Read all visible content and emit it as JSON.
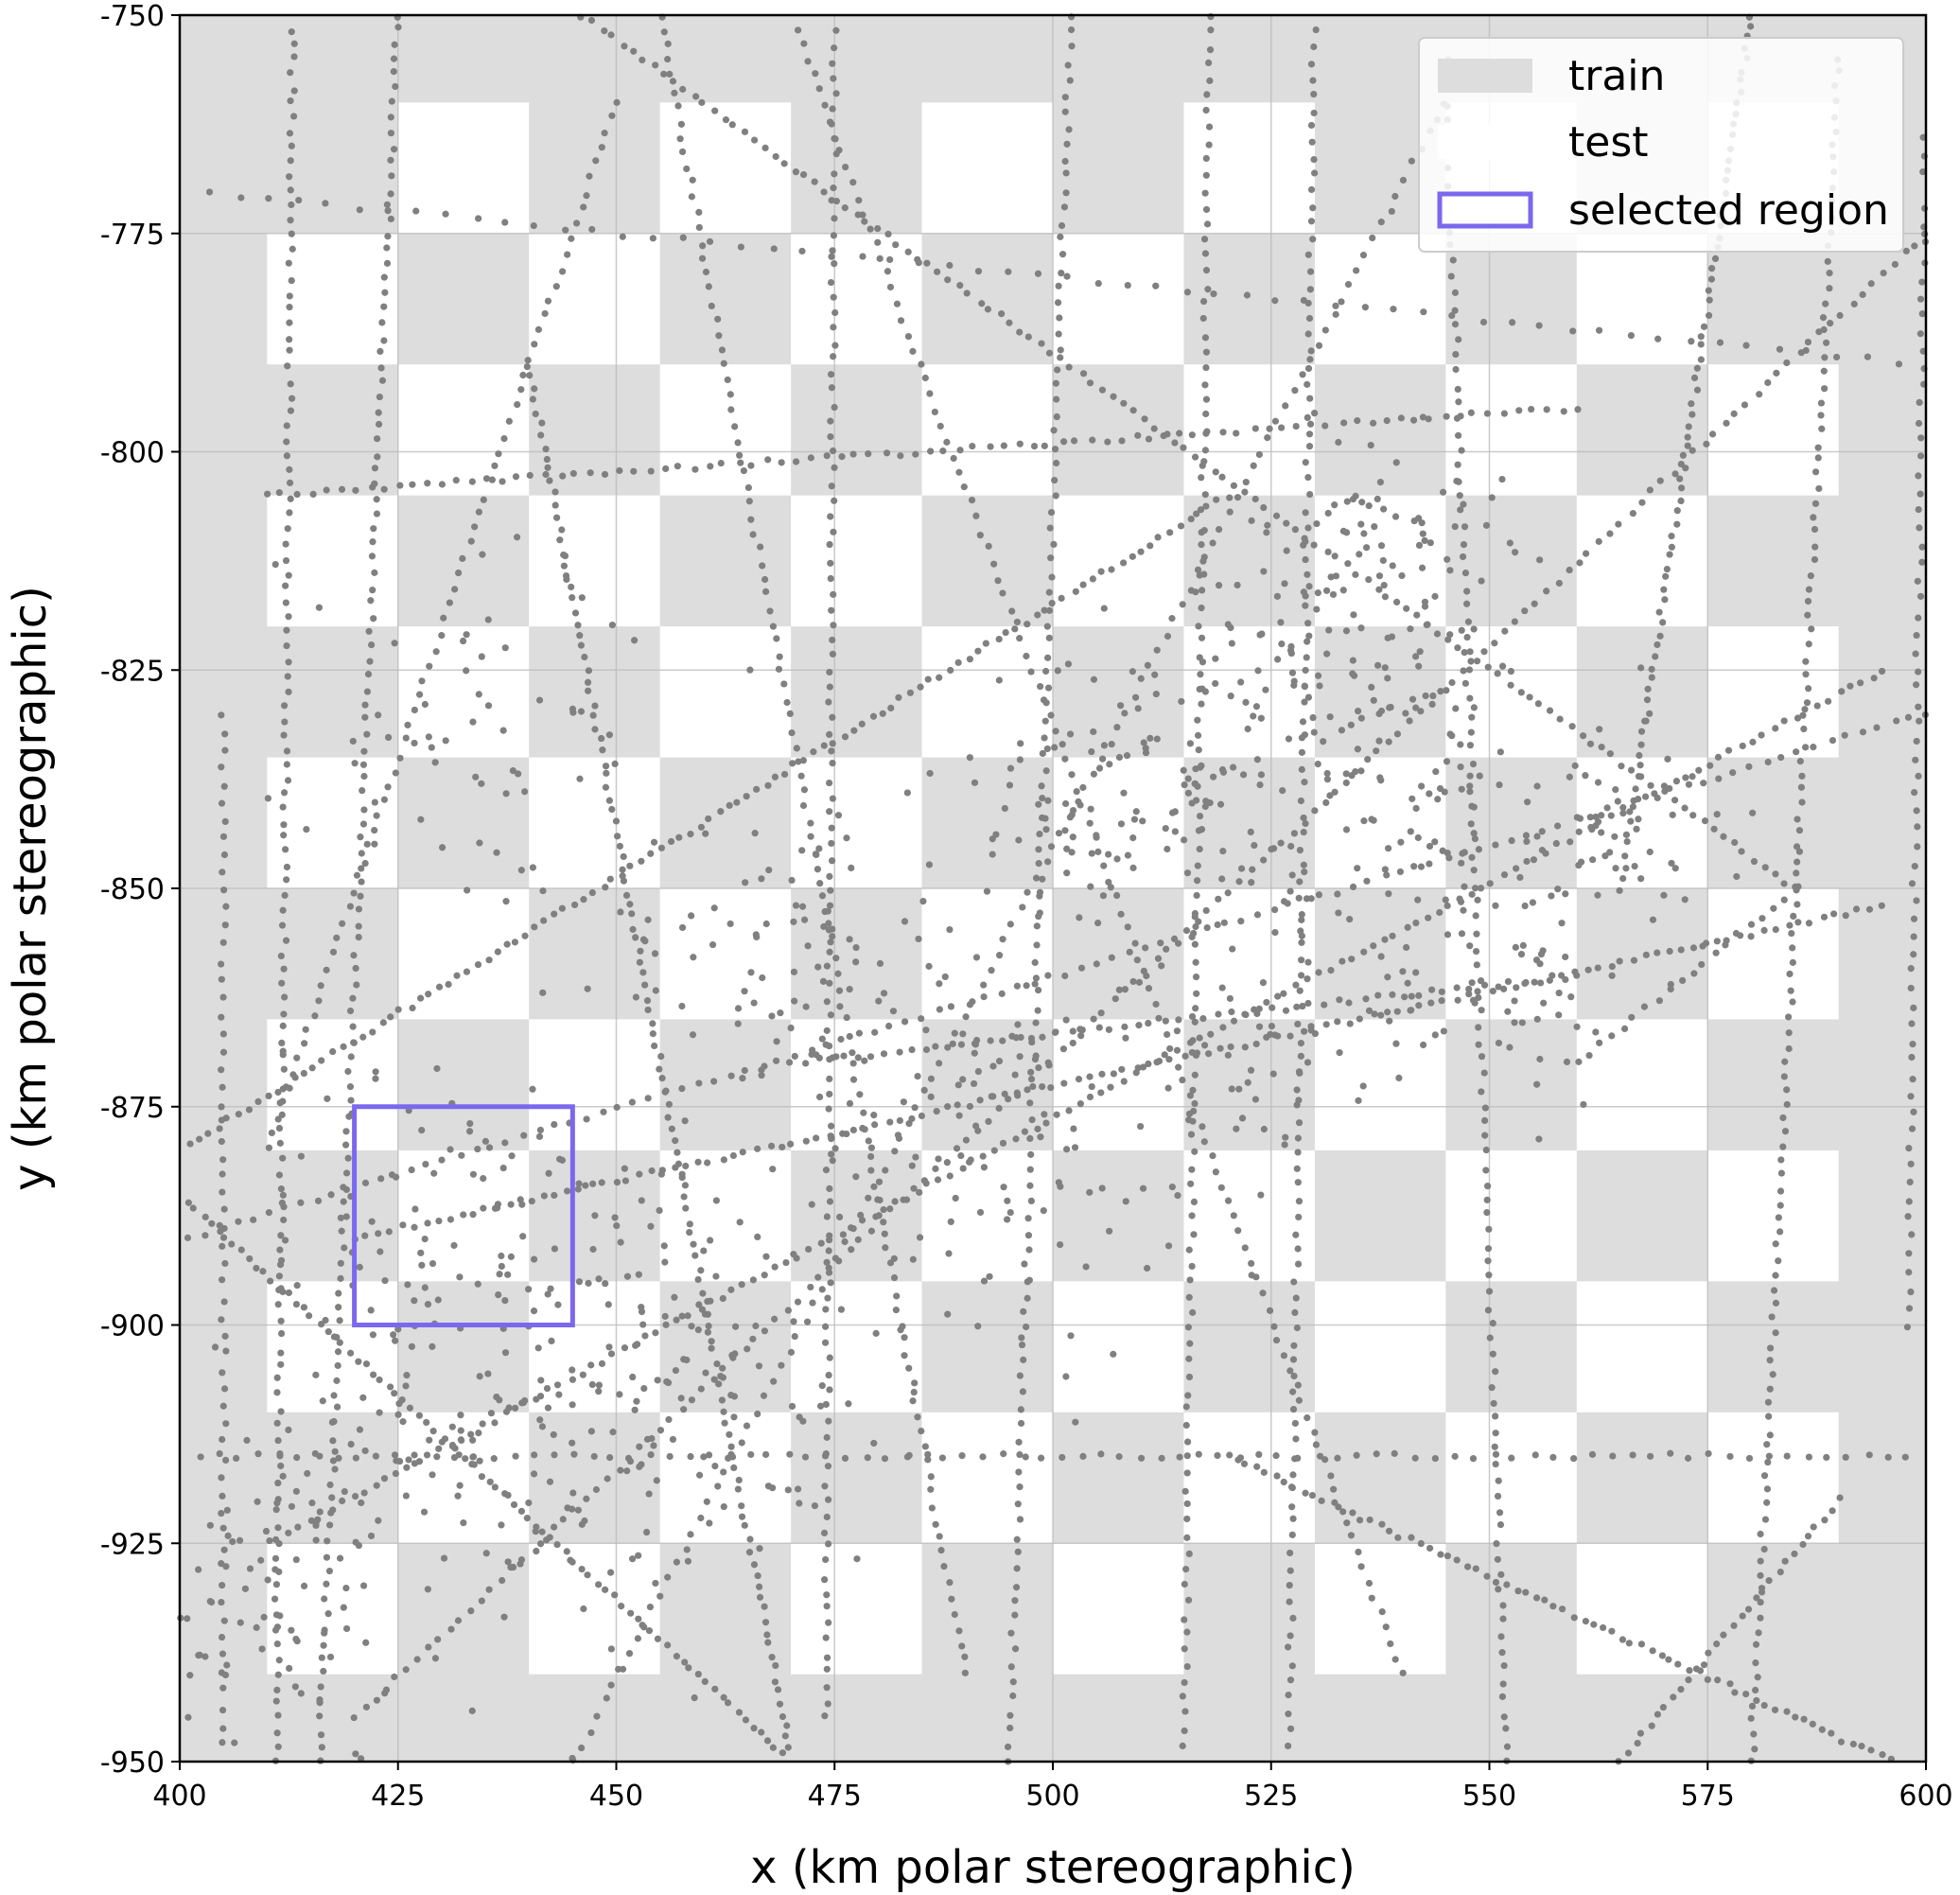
{
  "chart_data": {
    "type": "scatter",
    "xlabel": "x (km polar stereographic)",
    "ylabel": "y (km polar stereographic)",
    "xlim": [
      400,
      600
    ],
    "ylim": [
      -950,
      -750
    ],
    "x_ticks": [
      400,
      425,
      450,
      475,
      500,
      525,
      550,
      575,
      600
    ],
    "y_ticks": [
      -750,
      -775,
      -800,
      -825,
      -850,
      -875,
      -900,
      -925,
      -950
    ],
    "grid": true,
    "legend": {
      "placement": "top-right",
      "entries": [
        {
          "label": "train",
          "kind": "patch",
          "color": "#dddddd"
        },
        {
          "label": "test",
          "kind": "patch",
          "color": "#ffffff"
        },
        {
          "label": "selected region",
          "kind": "outline",
          "color": "#7b68ee"
        }
      ]
    },
    "checkerboard": {
      "x_start": 410,
      "x_end": 590,
      "y_start": -760,
      "y_end": -940,
      "cell_size": 15,
      "train_color": "#dddddd",
      "test_color": "#ffffff"
    },
    "selected_region": {
      "x0": 420,
      "x1": 445,
      "y0": -900,
      "y1": -875,
      "color": "#7b68ee"
    },
    "points_color": "#808080",
    "tracks": [
      {
        "x": [
          400,
          600
        ],
        "y": [
          -770,
          -790
        ],
        "n": 60
      },
      {
        "x": [
          446,
          585
        ],
        "y": [
          -750,
          -850
        ],
        "n": 120
      },
      {
        "x": [
          585,
          560
        ],
        "y": [
          -850,
          -870
        ],
        "n": 20
      },
      {
        "x": [
          420,
          595
        ],
        "y": [
          -890,
          -852
        ],
        "n": 130
      },
      {
        "x": [
          401,
          600
        ],
        "y": [
          -890,
          -830
        ],
        "n": 110
      },
      {
        "x": [
          400,
          600
        ],
        "y": [
          -915,
          -915
        ],
        "n": 90
      },
      {
        "x": [
          420,
          600
        ],
        "y": [
          -945,
          -775
        ],
        "n": 150
      },
      {
        "x": [
          520,
          596
        ],
        "y": [
          -915,
          -950
        ],
        "n": 70
      },
      {
        "x": [
          400,
          520
        ],
        "y": [
          -880,
          -805
        ],
        "n": 110
      },
      {
        "x": [
          410,
          595
        ],
        "y": [
          -925,
          -825
        ],
        "n": 150
      },
      {
        "x": [
          413,
          411
        ],
        "y": [
          -750,
          -950
        ],
        "n": 120
      },
      {
        "x": [
          425,
          416
        ],
        "y": [
          -750,
          -950
        ],
        "n": 120
      },
      {
        "x": [
          440,
          470
        ],
        "y": [
          -790,
          -950
        ],
        "n": 120
      },
      {
        "x": [
          455,
          490
        ],
        "y": [
          -750,
          -940
        ],
        "n": 110
      },
      {
        "x": [
          475,
          474
        ],
        "y": [
          -750,
          -945
        ],
        "n": 110
      },
      {
        "x": [
          502,
          495
        ],
        "y": [
          -750,
          -950
        ],
        "n": 110
      },
      {
        "x": [
          518,
          515
        ],
        "y": [
          -750,
          -950
        ],
        "n": 110
      },
      {
        "x": [
          530,
          527
        ],
        "y": [
          -750,
          -950
        ],
        "n": 110
      },
      {
        "x": [
          545,
          552
        ],
        "y": [
          -755,
          -950
        ],
        "n": 110
      },
      {
        "x": [
          590,
          580
        ],
        "y": [
          -755,
          -950
        ],
        "n": 120
      },
      {
        "x": [
          580,
          565
        ],
        "y": [
          -750,
          -850
        ],
        "n": 80
      },
      {
        "x": [
          470,
          540
        ],
        "y": [
          -750,
          -940
        ],
        "n": 110
      },
      {
        "x": [
          400,
          470
        ],
        "y": [
          -885,
          -950
        ],
        "n": 80
      },
      {
        "x": [
          405,
          405
        ],
        "y": [
          -830,
          -950
        ],
        "n": 60
      },
      {
        "x": [
          545,
          445
        ],
        "y": [
          -760,
          -950
        ],
        "n": 110
      },
      {
        "x": [
          590,
          565
        ],
        "y": [
          -920,
          -950
        ],
        "n": 30
      },
      {
        "x": [
          410,
          560
        ],
        "y": [
          -805,
          -795
        ],
        "n": 90
      },
      {
        "x": [
          600,
          598
        ],
        "y": [
          -760,
          -900
        ],
        "n": 70
      },
      {
        "x": [
          470,
          560
        ],
        "y": [
          -870,
          -860
        ],
        "n": 60
      },
      {
        "x": [
          410,
          450
        ],
        "y": [
          -880,
          -760
        ],
        "n": 70
      }
    ],
    "clusters": [
      {
        "cx": 510,
        "cy": -840,
        "sx": 11,
        "sy": 10,
        "n": 130
      },
      {
        "cx": 532,
        "cy": -825,
        "sx": 8,
        "sy": 7,
        "n": 90
      },
      {
        "cx": 538,
        "cy": -808,
        "sx": 7,
        "sy": 5,
        "n": 60
      },
      {
        "cx": 432,
        "cy": -902,
        "sx": 10,
        "sy": 18,
        "n": 170
      },
      {
        "cx": 412,
        "cy": -930,
        "sx": 7,
        "sy": 10,
        "n": 70
      },
      {
        "cx": 458,
        "cy": -905,
        "sx": 11,
        "sy": 13,
        "n": 110
      },
      {
        "cx": 490,
        "cy": -880,
        "sx": 11,
        "sy": 12,
        "n": 90
      },
      {
        "cx": 470,
        "cy": -858,
        "sx": 10,
        "sy": 9,
        "n": 70
      },
      {
        "cx": 552,
        "cy": -858,
        "sx": 8,
        "sy": 9,
        "n": 60
      },
      {
        "cx": 542,
        "cy": -840,
        "sx": 7,
        "sy": 7,
        "n": 50
      },
      {
        "cx": 565,
        "cy": -845,
        "sx": 9,
        "sy": 7,
        "n": 40
      },
      {
        "cx": 437,
        "cy": -832,
        "sx": 12,
        "sy": 12,
        "n": 60
      },
      {
        "cx": 522,
        "cy": -870,
        "sx": 10,
        "sy": 10,
        "n": 60
      }
    ]
  }
}
